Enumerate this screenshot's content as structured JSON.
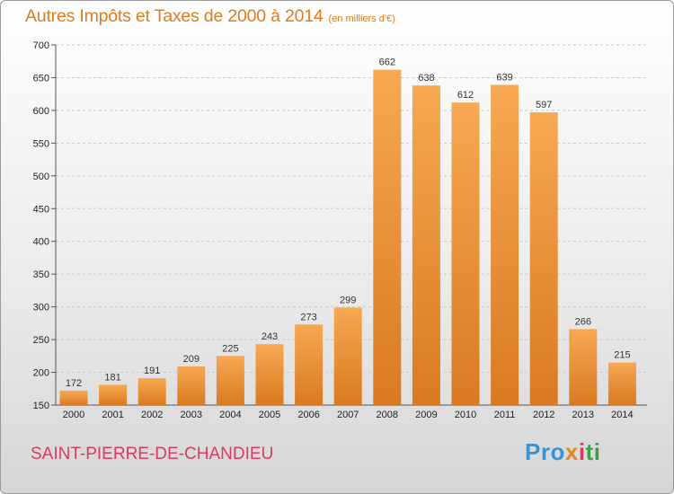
{
  "header": {
    "title": "Autres Impôts et Taxes de 2000 à 2014",
    "subtitle": "(en milliers d'€)"
  },
  "commune": "SAINT-PIERRE-DE-CHANDIEU",
  "logo": {
    "p1": "Pro",
    "p2": "x",
    "p3": "i",
    "p4": "ti"
  },
  "colors": {
    "title": "#e07b1e",
    "bar_top": "#f7a852",
    "bar_bottom": "#d97a22",
    "commune": "#d93b62"
  },
  "chart_data": {
    "type": "bar",
    "title": "Autres Impôts et Taxes de 2000 à 2014",
    "subtitle": "(en milliers d'€)",
    "categories": [
      "2000",
      "2001",
      "2002",
      "2003",
      "2004",
      "2005",
      "2006",
      "2007",
      "2008",
      "2009",
      "2010",
      "2011",
      "2012",
      "2013",
      "2014"
    ],
    "values": [
      172,
      181,
      191,
      209,
      225,
      243,
      273,
      299,
      662,
      638,
      612,
      639,
      597,
      266,
      215
    ],
    "ylim": [
      150,
      700
    ],
    "yticks": [
      150,
      200,
      250,
      300,
      350,
      400,
      450,
      500,
      550,
      600,
      650,
      700
    ],
    "grid": true,
    "data_labels": true
  }
}
